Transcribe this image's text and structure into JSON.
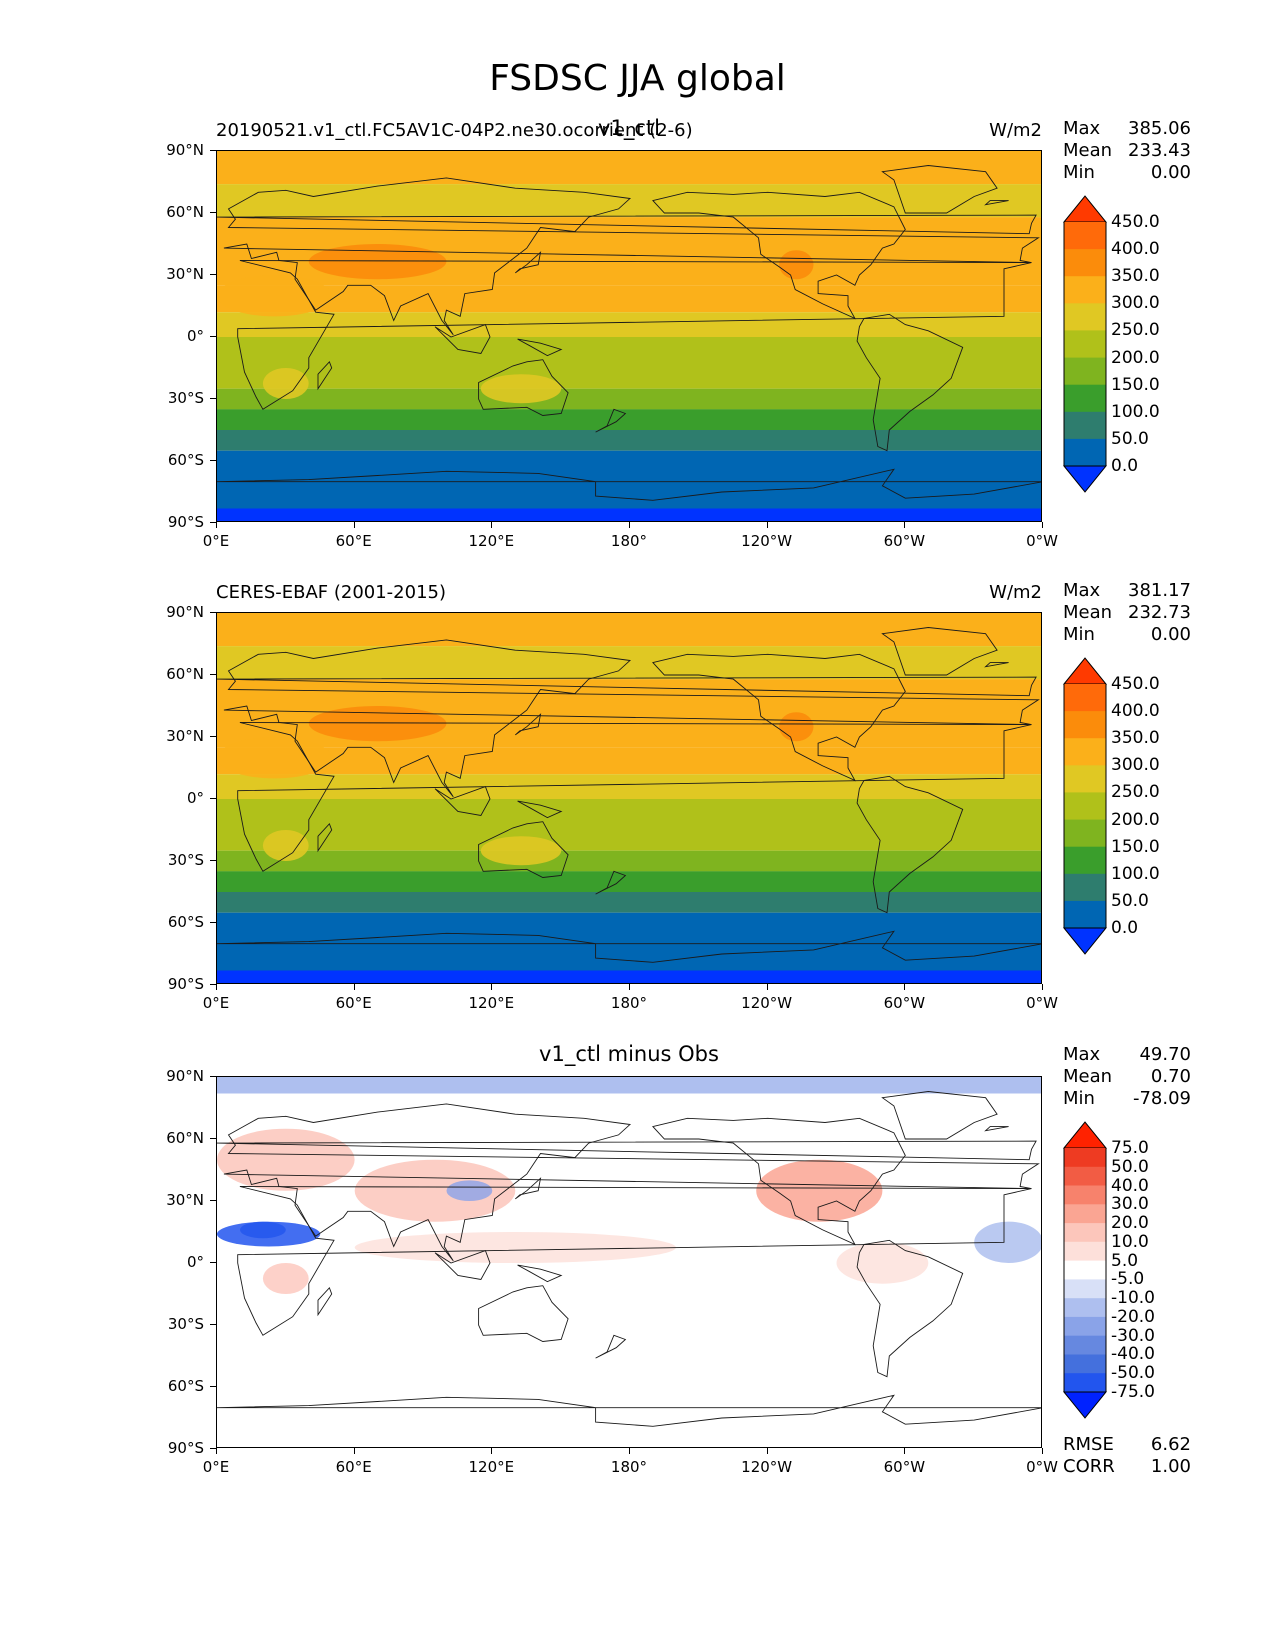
{
  "figure": {
    "title": "FSDSC JJA global"
  },
  "panels": [
    {
      "left_title": "20190521.v1_ctl.FC5AV1C-04P2.ne30.ocorrient (2-6)",
      "center_title": "v1_ctl",
      "right_title": "W/m2",
      "stats": [
        {
          "label": "Max",
          "value": "385.06"
        },
        {
          "label": "Mean",
          "value": "233.43"
        },
        {
          "label": "Min",
          "value": "0.00"
        }
      ]
    },
    {
      "left_title": "CERES-EBAF (2001-2015)",
      "center_title": "",
      "right_title": "W/m2",
      "stats": [
        {
          "label": "Max",
          "value": "381.17"
        },
        {
          "label": "Mean",
          "value": "232.73"
        },
        {
          "label": "Min",
          "value": "0.00"
        }
      ]
    },
    {
      "left_title": "",
      "center_title": "v1_ctl minus Obs",
      "right_title": "",
      "stats": [
        {
          "label": "Max",
          "value": "49.70"
        },
        {
          "label": "Mean",
          "value": "0.70"
        },
        {
          "label": "Min",
          "value": "-78.09"
        }
      ],
      "extra_stats": [
        {
          "label": "RMSE",
          "value": "6.62"
        },
        {
          "label": "CORR",
          "value": "1.00"
        }
      ]
    }
  ],
  "chart_data": [
    {
      "type": "heatmap",
      "map": "global filled-contour map (PlateCarree, central longitude 180)",
      "title": "v1_ctl",
      "units": "W/m2",
      "x_ticklabels": [
        "0°E",
        "60°E",
        "120°E",
        "180°",
        "120°W",
        "60°W",
        "0°W"
      ],
      "y_ticklabels": [
        "90°N",
        "60°N",
        "30°N",
        "0°",
        "30°S",
        "60°S",
        "90°S"
      ],
      "xlim": [
        0,
        360
      ],
      "ylim": [
        -90,
        90
      ],
      "zonal_bands": [
        {
          "lat": [
            74,
            90
          ],
          "value": 300
        },
        {
          "lat": [
            58,
            74
          ],
          "value": 260
        },
        {
          "lat": [
            25,
            58
          ],
          "value": 310
        },
        {
          "lat": [
            12,
            25
          ],
          "value": 300
        },
        {
          "lat": [
            -5,
            12
          ],
          "value": 260
        },
        {
          "lat": [
            -25,
            0
          ],
          "value": 210
        },
        {
          "lat": [
            -35,
            -25
          ],
          "value": 160
        },
        {
          "lat": [
            -45,
            -35
          ],
          "value": 110
        },
        {
          "lat": [
            -55,
            -45
          ],
          "value": 70
        },
        {
          "lat": [
            -83,
            -55
          ],
          "value": 25
        },
        {
          "lat": [
            -90,
            -83
          ],
          "value": -5
        }
      ],
      "colorbar": {
        "levels": [
          "0.0",
          "50.0",
          "100.0",
          "150.0",
          "200.0",
          "250.0",
          "300.0",
          "350.0",
          "400.0",
          "450.0"
        ],
        "colors": [
          "#0033ff",
          "#0066b3",
          "#2e7d6e",
          "#3a9e2c",
          "#7fb41f",
          "#b0c11a",
          "#e0c823",
          "#fbb01a",
          "#fb8c0b",
          "#ff6a0a",
          "#ff3a00"
        ],
        "extend": "both"
      }
    },
    {
      "type": "heatmap",
      "map": "global filled-contour map (PlateCarree, central longitude 180)",
      "title": "CERES-EBAF (2001-2015)",
      "units": "W/m2",
      "x_ticklabels": [
        "0°E",
        "60°E",
        "120°E",
        "180°",
        "120°W",
        "60°W",
        "0°W"
      ],
      "y_ticklabels": [
        "90°N",
        "60°N",
        "30°N",
        "0°",
        "30°S",
        "60°S",
        "90°S"
      ],
      "xlim": [
        0,
        360
      ],
      "ylim": [
        -90,
        90
      ],
      "zonal_bands": [
        {
          "lat": [
            74,
            90
          ],
          "value": 300
        },
        {
          "lat": [
            58,
            74
          ],
          "value": 260
        },
        {
          "lat": [
            25,
            58
          ],
          "value": 310
        },
        {
          "lat": [
            12,
            25
          ],
          "value": 300
        },
        {
          "lat": [
            -5,
            12
          ],
          "value": 260
        },
        {
          "lat": [
            -25,
            0
          ],
          "value": 210
        },
        {
          "lat": [
            -35,
            -25
          ],
          "value": 160
        },
        {
          "lat": [
            -45,
            -35
          ],
          "value": 110
        },
        {
          "lat": [
            -55,
            -45
          ],
          "value": 70
        },
        {
          "lat": [
            -83,
            -55
          ],
          "value": 25
        },
        {
          "lat": [
            -90,
            -83
          ],
          "value": -5
        }
      ],
      "colorbar": {
        "levels": [
          "0.0",
          "50.0",
          "100.0",
          "150.0",
          "200.0",
          "250.0",
          "300.0",
          "350.0",
          "400.0",
          "450.0"
        ],
        "colors": [
          "#0033ff",
          "#0066b3",
          "#2e7d6e",
          "#3a9e2c",
          "#7fb41f",
          "#b0c11a",
          "#e0c823",
          "#fbb01a",
          "#fb8c0b",
          "#ff6a0a",
          "#ff3a00"
        ],
        "extend": "both"
      }
    },
    {
      "type": "heatmap",
      "map": "global filled-contour difference map (PlateCarree, central longitude 180)",
      "title": "v1_ctl minus Obs",
      "x_ticklabels": [
        "0°E",
        "60°E",
        "120°E",
        "180°",
        "120°W",
        "60°W",
        "0°W"
      ],
      "y_ticklabels": [
        "90°N",
        "60°N",
        "30°N",
        "0°",
        "30°S",
        "60°S",
        "90°S"
      ],
      "xlim": [
        0,
        360
      ],
      "ylim": [
        -90,
        90
      ],
      "colorbar": {
        "levels": [
          "-75.0",
          "-50.0",
          "-40.0",
          "-30.0",
          "-20.0",
          "-10.0",
          "-5.0",
          "5.0",
          "10.0",
          "20.0",
          "30.0",
          "40.0",
          "50.0",
          "75.0"
        ],
        "colors": [
          "#0022ff",
          "#2255ee",
          "#4470dd",
          "#6688e0",
          "#8aa3e8",
          "#aebfef",
          "#d8e0f7",
          "#ffffff",
          "#fde0da",
          "#fcc6bb",
          "#faa593",
          "#f7826c",
          "#f25c44",
          "#ee3b22",
          "#ff2200"
        ],
        "extend": "both"
      },
      "features": [
        {
          "name": "Arctic band",
          "lat": [
            82,
            90
          ],
          "value": -12
        },
        {
          "name": "Sahel / North Africa",
          "lon": [
            0,
            45
          ],
          "lat": [
            8,
            20
          ],
          "value": -55
        },
        {
          "name": "Europe",
          "lon": [
            0,
            60
          ],
          "lat": [
            35,
            65
          ],
          "value": 18
        },
        {
          "name": "Asia",
          "lon": [
            60,
            130
          ],
          "lat": [
            20,
            50
          ],
          "value": 15
        },
        {
          "name": "North America",
          "lon": [
            235,
            290
          ],
          "lat": [
            20,
            50
          ],
          "value": 20
        },
        {
          "name": "Equatorial Atlantic",
          "lon": [
            330,
            360
          ],
          "lat": [
            0,
            20
          ],
          "value": -15
        }
      ]
    }
  ]
}
